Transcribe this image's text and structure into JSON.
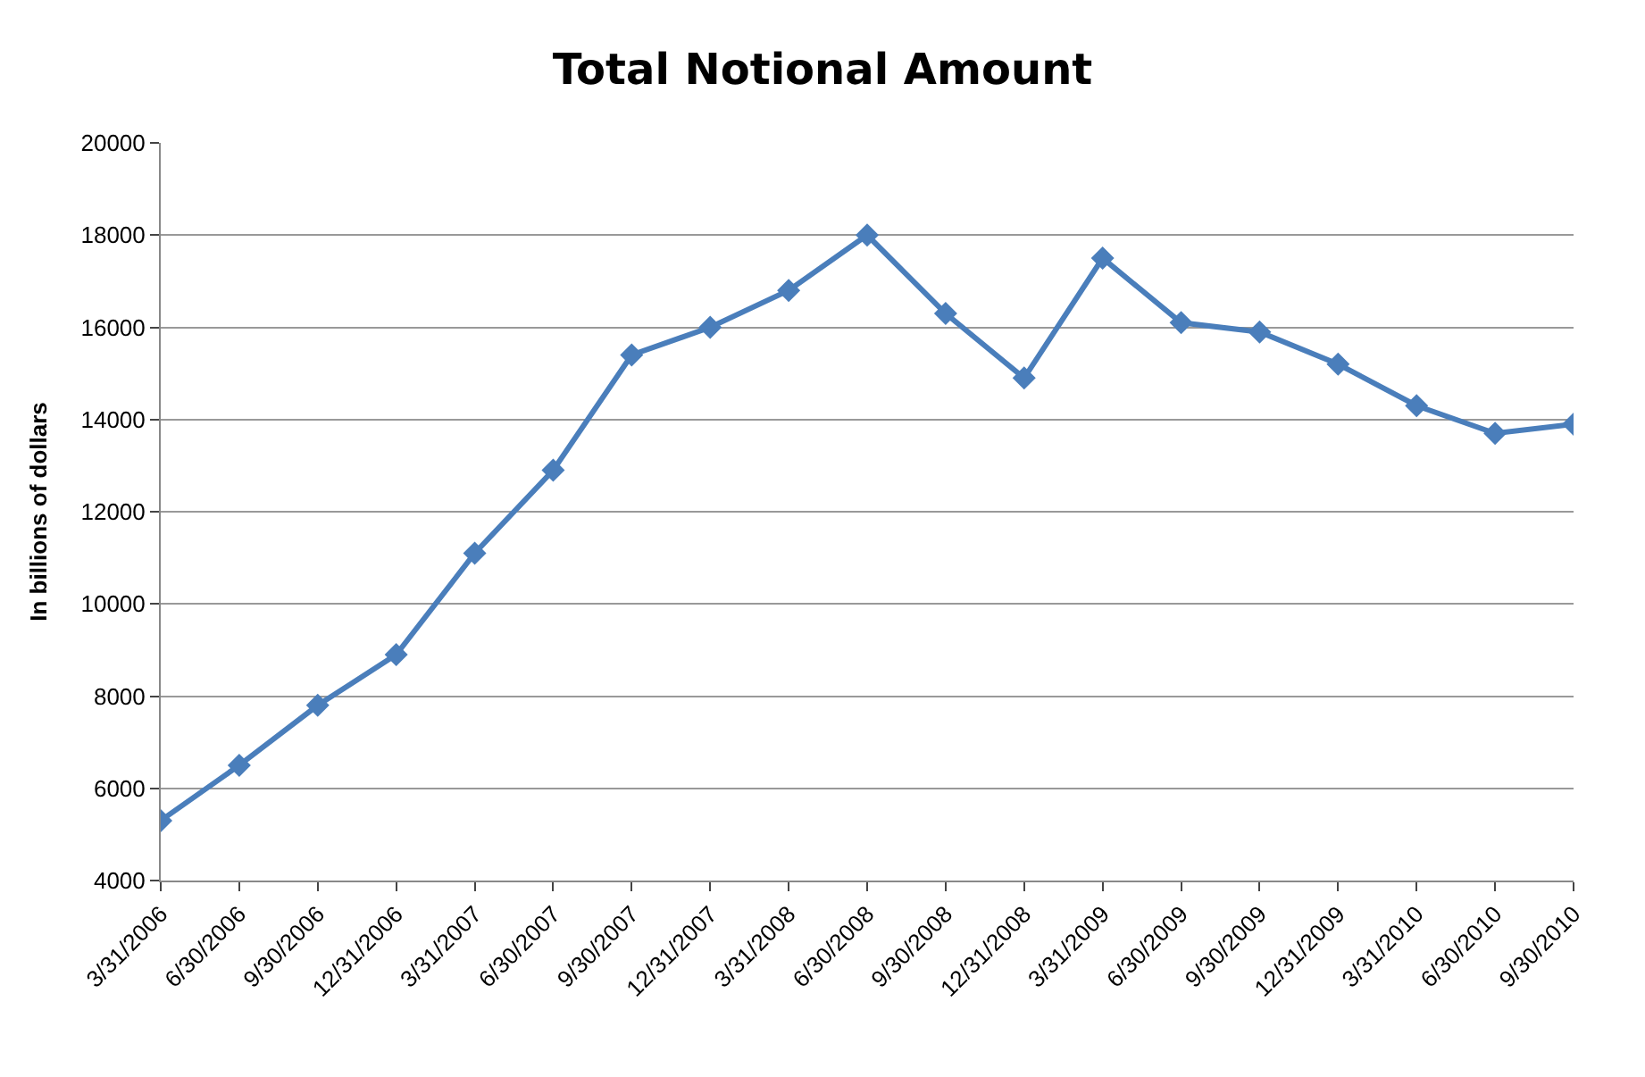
{
  "chart_data": {
    "type": "line",
    "title": "Total Notional Amount",
    "ylabel": "In billions of dollars",
    "categories": [
      "3/31/2006",
      "6/30/2006",
      "9/30/2006",
      "12/31/2006",
      "3/31/2007",
      "6/30/2007",
      "9/30/2007",
      "12/31/2007",
      "3/31/2008",
      "6/30/2008",
      "9/30/2008",
      "12/31/2008",
      "3/31/2009",
      "6/30/2009",
      "9/30/2009",
      "12/31/2009",
      "3/31/2010",
      "6/30/2010",
      "9/30/2010"
    ],
    "series": [
      {
        "color": "#4a7ebb",
        "values": [
          5300,
          6500,
          7800,
          8900,
          11100,
          12900,
          15400,
          16000,
          16800,
          18000,
          16300,
          14900,
          17500,
          16100,
          15900,
          15200,
          14300,
          13700,
          13900
        ]
      }
    ],
    "ylim": [
      4000,
      20000
    ],
    "yticks": [
      4000,
      6000,
      8000,
      10000,
      12000,
      14000,
      16000,
      18000,
      20000
    ],
    "grid": "y",
    "marker": "diamond",
    "line_style": "solid"
  }
}
